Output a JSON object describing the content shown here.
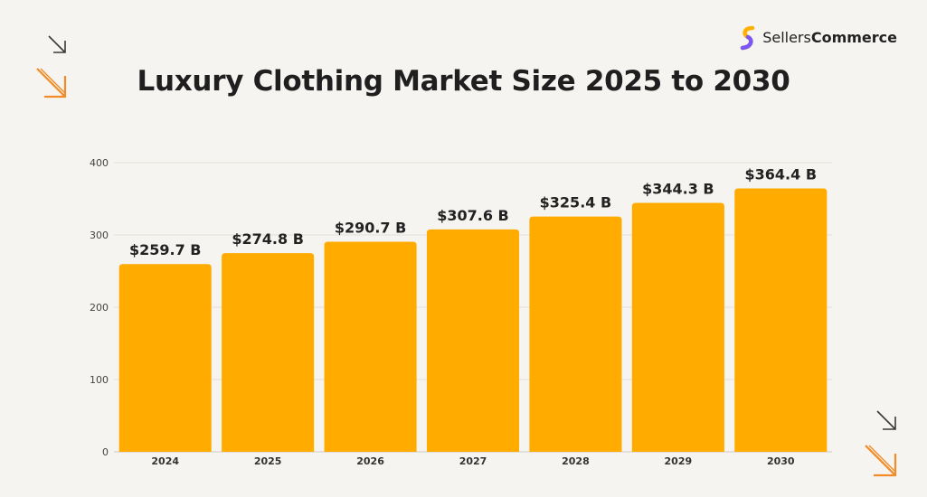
{
  "brand": {
    "name_light": "Sellers",
    "name_bold": "Commerce",
    "logo_icon": "sellerscommerce-logo-icon",
    "colors": [
      "#ffb000",
      "#7b57f5"
    ]
  },
  "decorations": {
    "arrow_icon": "diagonal-arrow-down-right-icon",
    "accent_color": "#f28c28",
    "dark_color": "#3a3a3a"
  },
  "chart_data": {
    "type": "bar",
    "title": "Luxury Clothing Market Size 2025 to 2030",
    "xlabel": "",
    "ylabel": "",
    "categories": [
      "2024",
      "2025",
      "2026",
      "2027",
      "2028",
      "2029",
      "2030"
    ],
    "values": [
      259.7,
      274.8,
      290.7,
      307.6,
      325.4,
      344.3,
      364.4
    ],
    "data_labels": [
      "$259.7 B",
      "$274.8 B",
      "$290.7 B",
      "$307.6 B",
      "$325.4 B",
      "$344.3 B",
      "$364.4 B"
    ],
    "ylim": [
      0,
      400
    ],
    "yticks": [
      "0",
      "100",
      "200",
      "300",
      "400"
    ],
    "grid": true,
    "bar_color": "#ffab00"
  }
}
